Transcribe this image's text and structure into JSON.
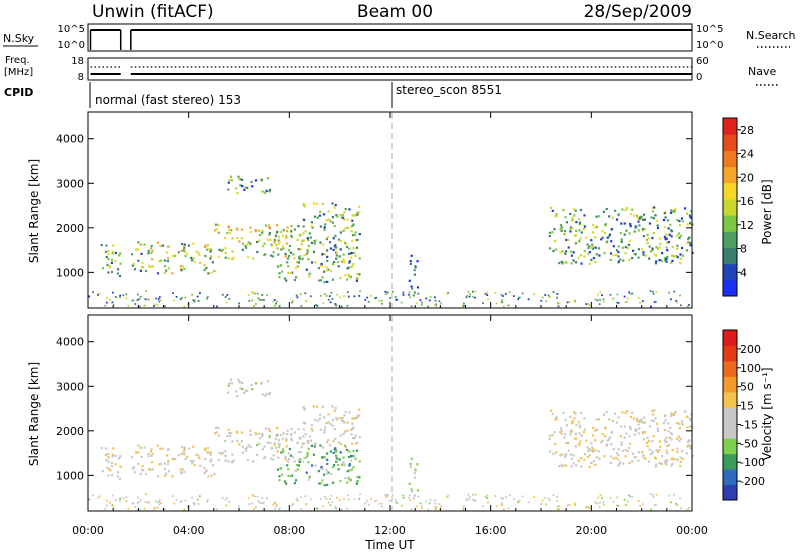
{
  "header": {
    "station": "Unwin (fitACF)",
    "beam": "Beam 00",
    "date": "28/Sep/2009"
  },
  "nsky_panel": {
    "left_label": "N.Sky",
    "left_ticks": [
      "10^5",
      "10^0"
    ],
    "right_ticks": [
      "10^5",
      "10^0"
    ],
    "right_label": "N.Search",
    "right_legend_line": "dotted",
    "segments": [
      [
        0.1,
        1.3
      ],
      [
        1.7,
        24.0
      ]
    ],
    "level": "high"
  },
  "freq_panel": {
    "left_label_top": "Freq.",
    "left_label_bottom": "[MHz]",
    "left_ticks": [
      "18",
      "8"
    ],
    "right_ticks": [
      "60",
      "0"
    ],
    "right_label": "Nave",
    "right_legend_line": "dotted"
  },
  "cpid_panel": {
    "label": "CPID",
    "programs": [
      {
        "name": "normal (fast stereo) 153",
        "start_hour": 0.0
      },
      {
        "name": "stereo_scon 8551",
        "start_hour": 12.0
      }
    ]
  },
  "time_axis": {
    "ticks": [
      "00:00",
      "04:00",
      "08:00",
      "12:00",
      "16:00",
      "20:00",
      "00:00"
    ],
    "label": "Time UT",
    "xlim_hours": [
      0,
      24
    ]
  },
  "chart_data": [
    {
      "type": "heatmap",
      "name": "power",
      "ylabel": "Slant Range [km]",
      "yticks": [
        "1000",
        "2000",
        "3000",
        "4000"
      ],
      "ylim": [
        200,
        4600
      ],
      "colorbar": {
        "label": "Power [dB]",
        "ticks": [
          "4",
          "8",
          "12",
          "16",
          "20",
          "24",
          "28"
        ],
        "range": [
          0,
          30
        ],
        "colors": [
          "#1c2ff5",
          "#2343b8",
          "#3a7f6e",
          "#4fa060",
          "#7bc843",
          "#c8d82e",
          "#f6d728",
          "#f4a52a",
          "#ee7a22",
          "#e84a1c",
          "#e0231a"
        ]
      },
      "regions": [
        {
          "t": [
            0.5,
            1.3
          ],
          "r": [
            900,
            1700
          ],
          "level": 10
        },
        {
          "t": [
            1.7,
            5.0
          ],
          "r": [
            1000,
            1700
          ],
          "level": 13
        },
        {
          "t": [
            5.0,
            8.5
          ],
          "r": [
            1300,
            2100
          ],
          "level": 15
        },
        {
          "t": [
            8.5,
            10.8
          ],
          "r": [
            1700,
            2600
          ],
          "level": 12
        },
        {
          "t": [
            7.5,
            10.8
          ],
          "r": [
            800,
            1700
          ],
          "level": 11
        },
        {
          "t": [
            5.5,
            7.2
          ],
          "r": [
            2800,
            3200
          ],
          "level": 7
        },
        {
          "t": [
            18.3,
            24.0
          ],
          "r": [
            1200,
            2500
          ],
          "level": 10
        },
        {
          "t": [
            12.7,
            13.1
          ],
          "r": [
            500,
            1400
          ],
          "level": 6
        }
      ]
    },
    {
      "type": "heatmap",
      "name": "velocity",
      "ylabel": "Slant Range [km]",
      "yticks": [
        "1000",
        "2000",
        "3000",
        "4000"
      ],
      "ylim": [
        200,
        4600
      ],
      "colorbar": {
        "label": "Velocity [m s⁻¹]",
        "ticks": [
          "200",
          "100",
          "50",
          "15",
          "-15",
          "-50",
          "-100",
          "-200"
        ],
        "range": [
          -250,
          250
        ],
        "colors": [
          "#2d3fb0",
          "#2f6abf",
          "#3c9b5a",
          "#7fd14c",
          "#c8c8c8",
          "#c8c8c8",
          "#f5c24b",
          "#f29a2a",
          "#ec6a1e",
          "#e43a18",
          "#e01b1b"
        ]
      },
      "regions": [
        {
          "t": [
            0.5,
            1.3
          ],
          "r": [
            900,
            1700
          ],
          "v": 0
        },
        {
          "t": [
            1.7,
            5.0
          ],
          "r": [
            1000,
            1700
          ],
          "v": 0
        },
        {
          "t": [
            5.0,
            8.5
          ],
          "r": [
            1300,
            2100
          ],
          "v": -10
        },
        {
          "t": [
            8.5,
            10.8
          ],
          "r": [
            1700,
            2600
          ],
          "v": 0
        },
        {
          "t": [
            7.5,
            10.8
          ],
          "r": [
            800,
            1700
          ],
          "v": -110
        },
        {
          "t": [
            5.5,
            7.2
          ],
          "r": [
            2800,
            3200
          ],
          "v": -40
        },
        {
          "t": [
            18.3,
            24.0
          ],
          "r": [
            1200,
            2500
          ],
          "v": 0
        },
        {
          "t": [
            12.7,
            13.1
          ],
          "r": [
            500,
            1400
          ],
          "v": -60
        }
      ]
    }
  ]
}
